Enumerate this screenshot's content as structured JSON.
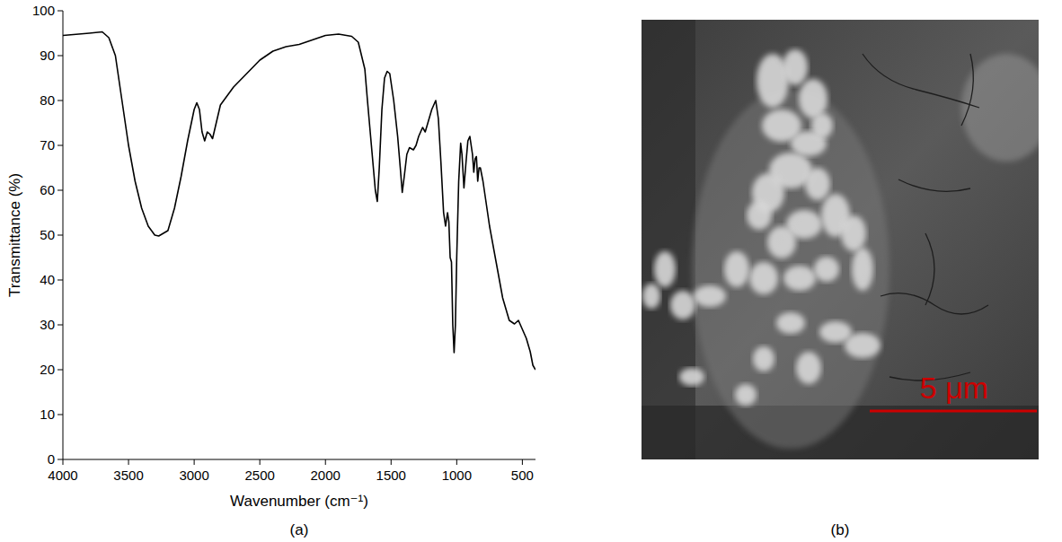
{
  "chart_data": {
    "type": "line",
    "x_label": "Wavenumber (cm⁻¹)",
    "y_label": "Transmittance (%)",
    "color": "#000000",
    "xlim": [
      4000,
      400
    ],
    "xticks": [
      4000,
      3500,
      3000,
      2500,
      2000,
      1500,
      1000,
      500
    ],
    "ylim": [
      0,
      100
    ],
    "yticks": [
      0,
      10,
      20,
      30,
      40,
      50,
      60,
      70,
      80,
      90,
      100
    ],
    "grid": false,
    "x": [
      4000,
      3800,
      3700,
      3650,
      3600,
      3550,
      3500,
      3450,
      3400,
      3350,
      3300,
      3270,
      3200,
      3150,
      3100,
      3050,
      3000,
      2980,
      2960,
      2940,
      2920,
      2900,
      2880,
      2860,
      2840,
      2800,
      2700,
      2600,
      2500,
      2400,
      2300,
      2200,
      2100,
      2000,
      1900,
      1800,
      1750,
      1700,
      1680,
      1650,
      1620,
      1605,
      1590,
      1570,
      1550,
      1530,
      1510,
      1480,
      1450,
      1430,
      1415,
      1400,
      1380,
      1360,
      1330,
      1310,
      1290,
      1260,
      1240,
      1220,
      1190,
      1160,
      1140,
      1120,
      1100,
      1085,
      1070,
      1060,
      1050,
      1040,
      1030,
      1020,
      1010,
      1000,
      985,
      970,
      960,
      945,
      930,
      915,
      900,
      880,
      870,
      860,
      850,
      840,
      830,
      820,
      800,
      780,
      750,
      700,
      650,
      600,
      560,
      530,
      500,
      470,
      440,
      420,
      400
    ],
    "values": [
      94.5,
      95,
      95.3,
      94,
      90,
      80,
      70,
      62,
      56,
      52,
      50,
      49.8,
      51,
      56,
      63,
      71,
      78,
      79.5,
      78,
      73,
      71,
      73,
      72.5,
      71.5,
      74,
      79,
      83,
      86,
      89,
      91,
      92,
      92.5,
      93.5,
      94.5,
      94.8,
      94.3,
      93,
      87,
      80,
      70,
      60,
      57.5,
      65,
      78,
      85,
      86.5,
      86,
      80,
      72,
      65,
      59.5,
      63,
      68,
      69.5,
      69,
      70,
      72,
      74,
      73,
      75,
      78,
      80,
      76,
      66,
      55,
      52,
      55,
      53,
      45,
      44,
      30,
      23.8,
      30,
      45,
      62,
      70.5,
      68,
      60.5,
      66,
      71,
      72,
      68,
      64,
      67,
      67.5,
      62,
      65,
      65,
      62,
      58,
      52,
      44,
      36,
      31,
      30.2,
      31,
      29,
      27,
      24,
      21,
      20
    ]
  },
  "panels": [
    {
      "label": "(a)"
    },
    {
      "label": "(b)",
      "scale_bar_label": "5 μm"
    }
  ]
}
